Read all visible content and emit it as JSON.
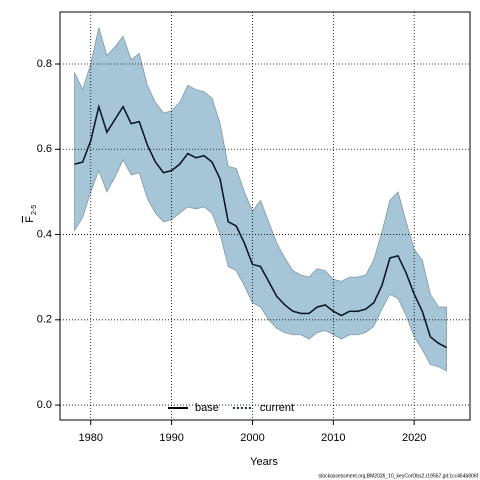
{
  "chart_data": {
    "type": "line",
    "x_label": "Years",
    "y_label": "F",
    "y_label_subscript": "2-5",
    "footer": "stockassessment.org,BM2026_10_keyCorObs2,r19567,git:1cc464b806f",
    "x": [
      1978,
      1979,
      1980,
      1981,
      1982,
      1983,
      1984,
      1985,
      1986,
      1987,
      1988,
      1989,
      1990,
      1991,
      1992,
      1993,
      1994,
      1995,
      1996,
      1997,
      1998,
      1999,
      2000,
      2001,
      2002,
      2003,
      2004,
      2005,
      2006,
      2007,
      2008,
      2009,
      2010,
      2011,
      2012,
      2013,
      2014,
      2015,
      2016,
      2017,
      2018,
      2019,
      2020,
      2021,
      2022,
      2023,
      2024
    ],
    "series": [
      {
        "name": "base",
        "color": "#000000",
        "dash": "solid",
        "values": [
          0.565,
          0.57,
          0.62,
          0.7,
          0.64,
          0.67,
          0.7,
          0.66,
          0.665,
          0.61,
          0.57,
          0.545,
          0.55,
          0.565,
          0.59,
          0.58,
          0.585,
          0.57,
          0.53,
          0.43,
          0.42,
          0.38,
          0.33,
          0.325,
          0.29,
          0.255,
          0.235,
          0.22,
          0.215,
          0.215,
          0.23,
          0.235,
          0.22,
          0.21,
          0.22,
          0.22,
          0.225,
          0.24,
          0.28,
          0.345,
          0.35,
          0.31,
          0.26,
          0.22,
          0.16,
          0.145,
          0.135
        ]
      },
      {
        "name": "current",
        "color": "#0a2a45",
        "dash": "dotted",
        "values": [
          0.565,
          0.57,
          0.62,
          0.7,
          0.64,
          0.67,
          0.7,
          0.66,
          0.665,
          0.61,
          0.57,
          0.545,
          0.55,
          0.565,
          0.59,
          0.58,
          0.585,
          0.57,
          0.53,
          0.43,
          0.42,
          0.38,
          0.33,
          0.325,
          0.29,
          0.255,
          0.235,
          0.22,
          0.215,
          0.215,
          0.23,
          0.235,
          0.22,
          0.21,
          0.22,
          0.22,
          0.225,
          0.24,
          0.28,
          0.345,
          0.35,
          0.31,
          0.26,
          0.22,
          0.16,
          0.145,
          0.135
        ]
      }
    ],
    "band": {
      "color": "#a6c5d6",
      "upper": [
        0.78,
        0.74,
        0.8,
        0.885,
        0.82,
        0.84,
        0.865,
        0.81,
        0.825,
        0.75,
        0.71,
        0.685,
        0.69,
        0.71,
        0.75,
        0.74,
        0.735,
        0.72,
        0.66,
        0.56,
        0.555,
        0.5,
        0.455,
        0.48,
        0.43,
        0.38,
        0.345,
        0.315,
        0.305,
        0.3,
        0.32,
        0.315,
        0.295,
        0.29,
        0.3,
        0.3,
        0.305,
        0.34,
        0.405,
        0.48,
        0.5,
        0.43,
        0.365,
        0.34,
        0.26,
        0.23,
        0.23
      ],
      "lower": [
        0.41,
        0.44,
        0.5,
        0.55,
        0.5,
        0.535,
        0.575,
        0.54,
        0.545,
        0.485,
        0.45,
        0.43,
        0.435,
        0.45,
        0.465,
        0.46,
        0.465,
        0.45,
        0.4,
        0.325,
        0.315,
        0.28,
        0.24,
        0.23,
        0.2,
        0.18,
        0.17,
        0.165,
        0.165,
        0.155,
        0.17,
        0.175,
        0.165,
        0.155,
        0.165,
        0.165,
        0.17,
        0.185,
        0.225,
        0.26,
        0.25,
        0.21,
        0.16,
        0.13,
        0.095,
        0.09,
        0.08
      ]
    },
    "xlim": [
      1976.2,
      2026.9
    ],
    "ylim": [
      -0.035,
      0.922
    ],
    "xticks": [
      1980,
      1990,
      2000,
      2010,
      2020
    ],
    "yticks": [
      {
        "value": 0,
        "label": "0.0"
      },
      0.2,
      0.4,
      0.6,
      0.8
    ],
    "grid": true,
    "legend": "bottom"
  }
}
